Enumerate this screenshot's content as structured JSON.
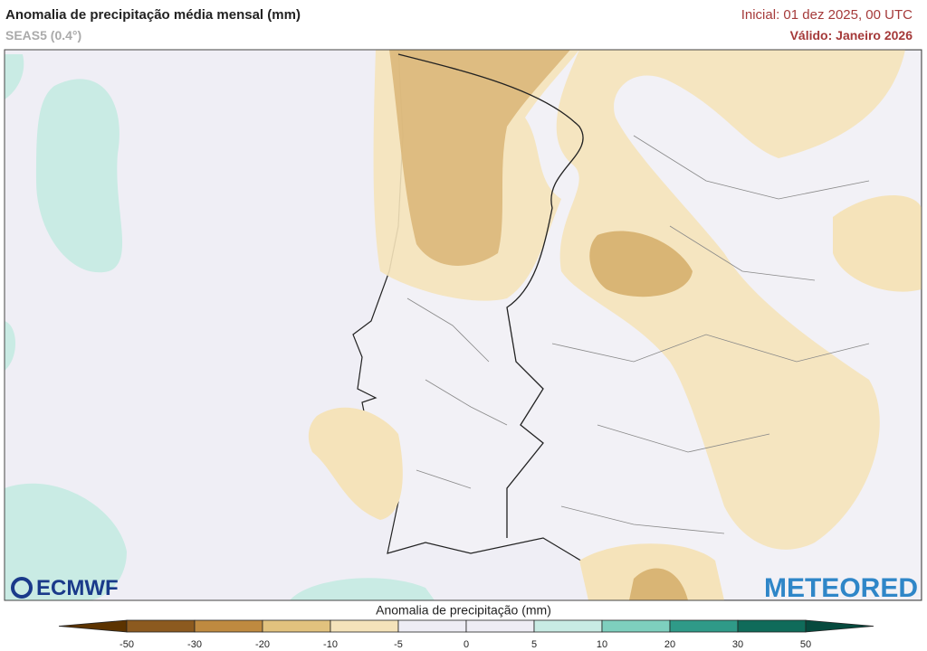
{
  "header": {
    "title": "Anomalia de precipitação média mensal (mm)",
    "subtitle": "SEAS5 (0.4°)",
    "initial": "Inicial: 01 dez 2025, 00 UTC",
    "valid": "Válido: Janeiro 2026"
  },
  "logos": {
    "left": "ECMWF",
    "right": "METEORED"
  },
  "colorbar": {
    "title": "Anomalia de precipitação (mm)",
    "ticks": [
      -50,
      -30,
      -20,
      -10,
      -5,
      0,
      5,
      10,
      20,
      30,
      50
    ],
    "colors": [
      "#5c3300",
      "#8c5a1f",
      "#bf8a40",
      "#e2c27e",
      "#f5e3ba",
      "#eeedf5",
      "#eeedf5",
      "#c8ebe4",
      "#7ecfbe",
      "#2f9a88",
      "#0f6b5a",
      "#064a3e"
    ]
  }
}
